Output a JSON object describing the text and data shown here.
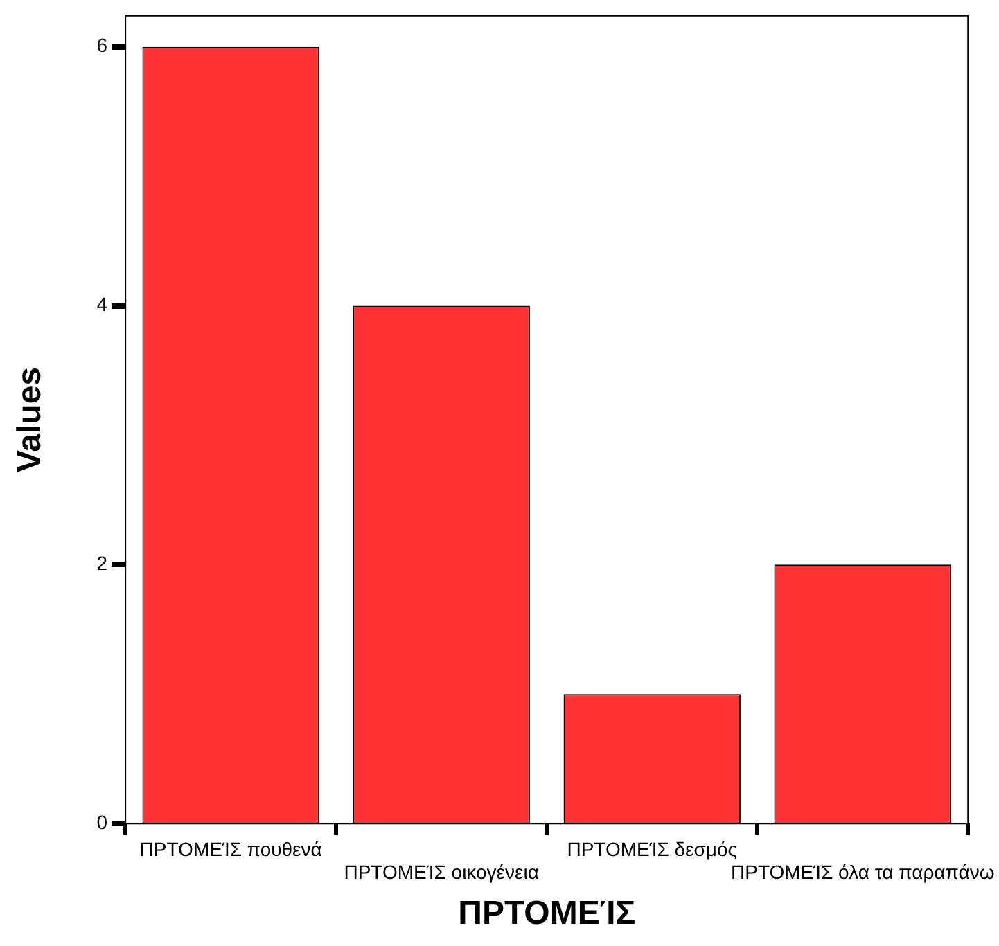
{
  "chart_data": {
    "type": "bar",
    "xlabel": "ΠΡΤΟΜΕΊΣ",
    "ylabel": "Values",
    "categories": [
      "ΠΡΤΟΜΕΊΣ πουθενά",
      "ΠΡΤΟΜΕΊΣ οικογένεια",
      "ΠΡΤΟΜΕΊΣ δεσμός",
      "ΠΡΤΟΜΕΊΣ όλα τα παραπάνω"
    ],
    "values": [
      6,
      4,
      1,
      2
    ],
    "color": "#ff3333",
    "ylim": [
      0,
      6.24
    ],
    "yticks": [
      0,
      2,
      4,
      6
    ],
    "grid": false,
    "legend": false
  }
}
